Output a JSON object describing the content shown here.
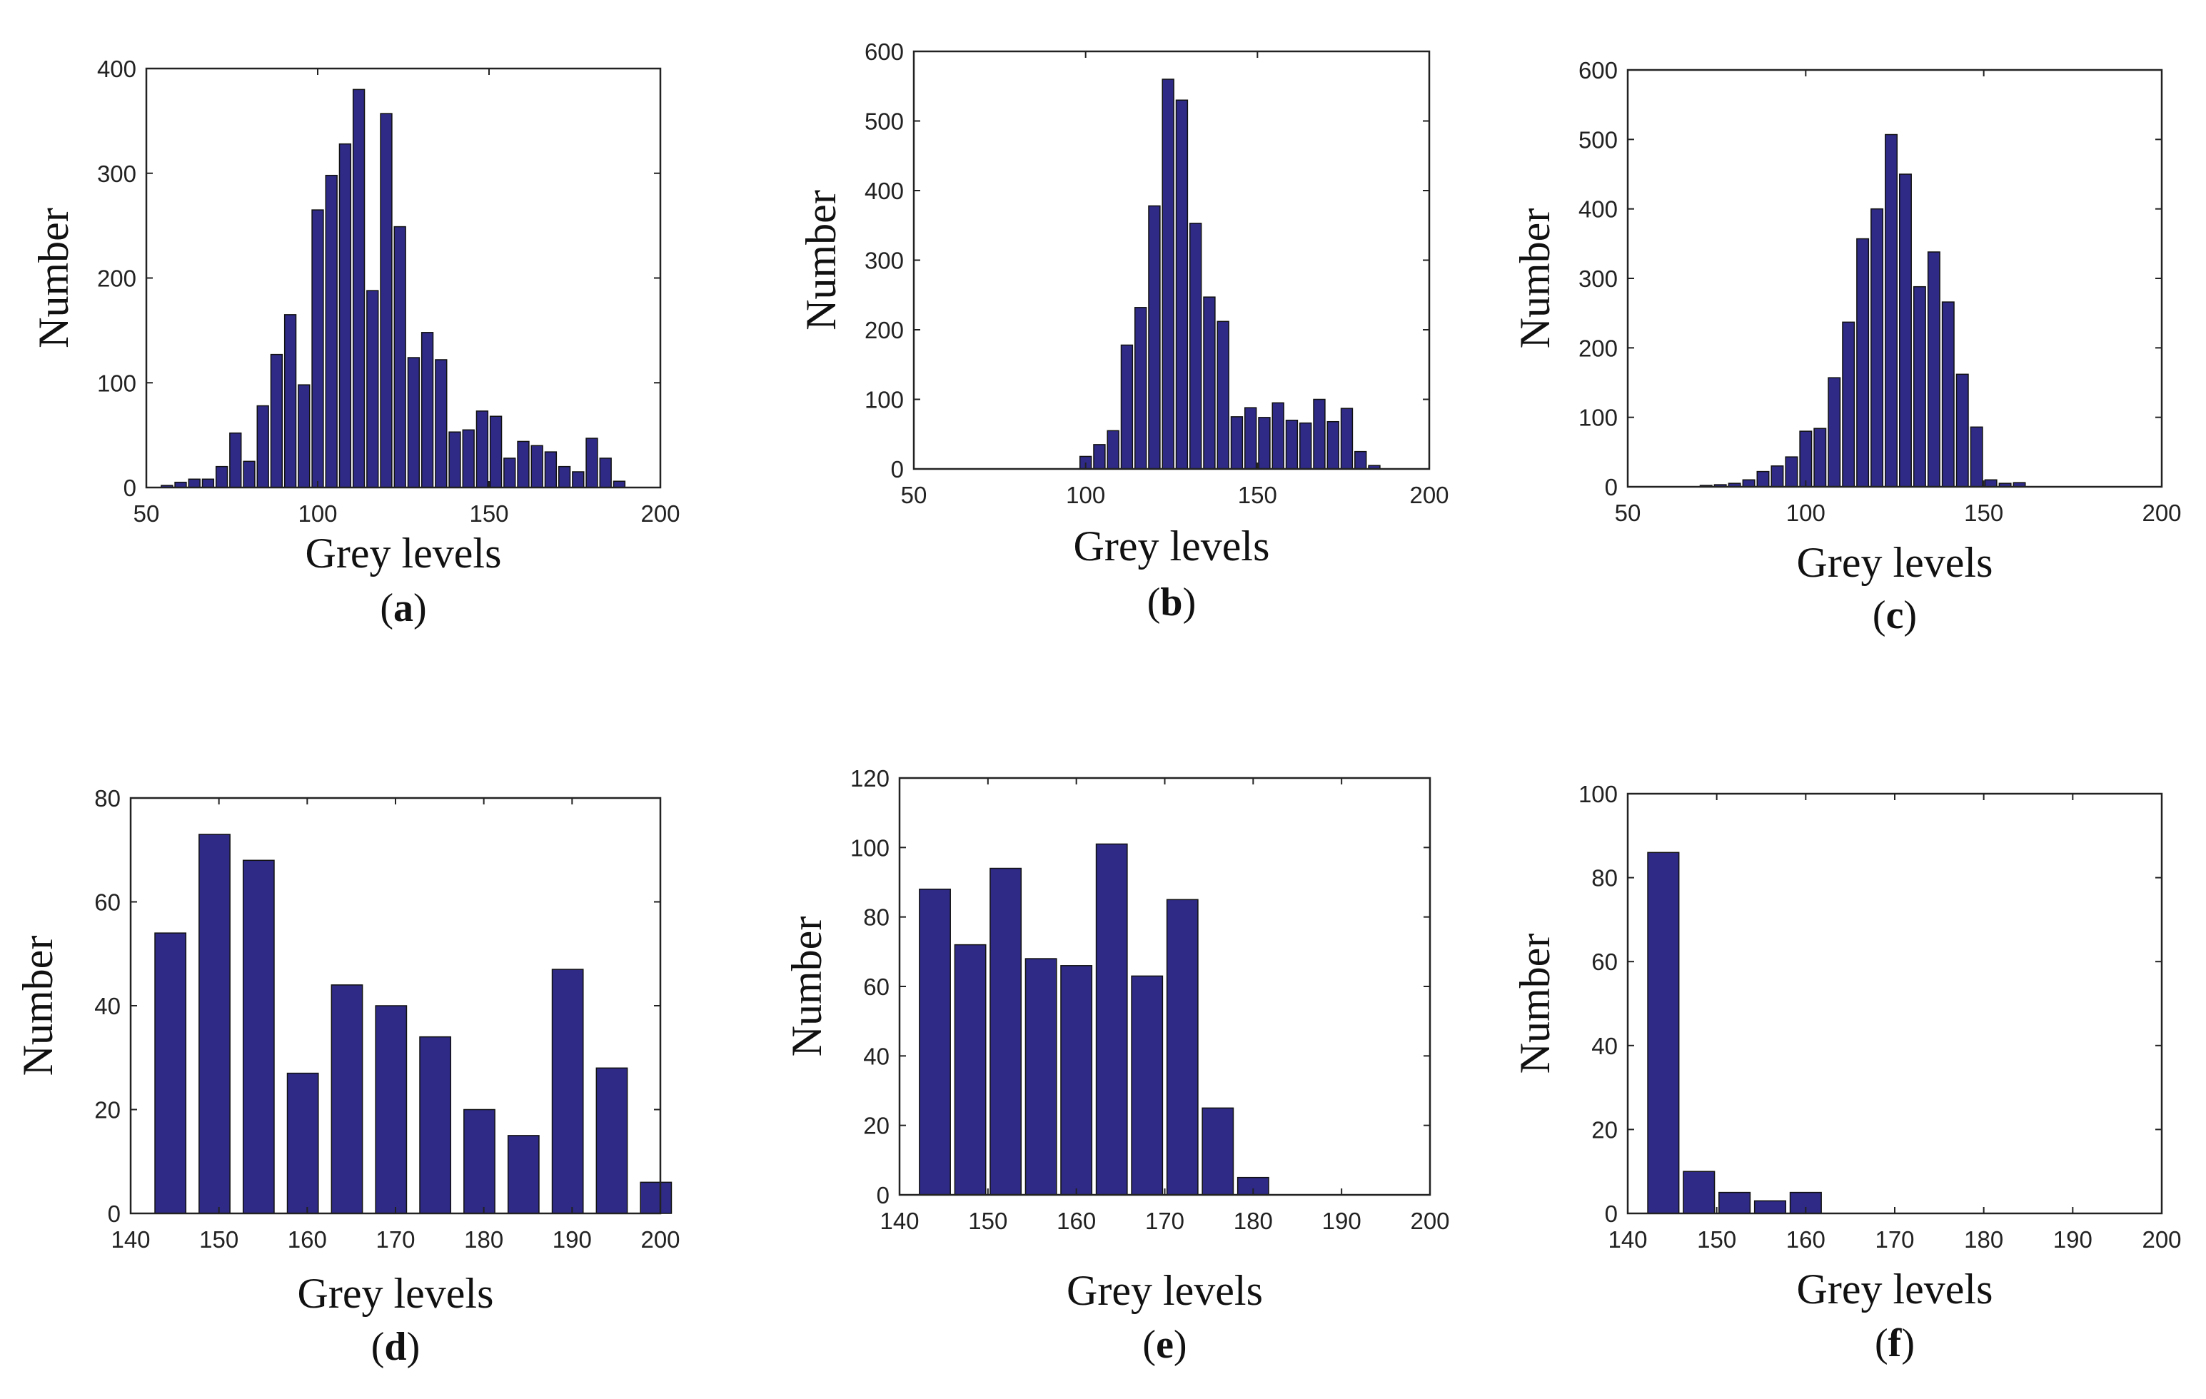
{
  "chart_data": [
    {
      "type": "bar",
      "panel_label": "a",
      "xlabel": "Grey levels",
      "ylabel": "Number",
      "xlim": [
        50,
        200
      ],
      "ylim": [
        0,
        400
      ],
      "xticks": [
        50,
        100,
        150,
        200
      ],
      "yticks": [
        0,
        100,
        200,
        300,
        400
      ],
      "bar_width": 3.3,
      "bar_color": "#2e2a86",
      "x": [
        56,
        60,
        64,
        68,
        72,
        76,
        80,
        84,
        88,
        92,
        96,
        100,
        104,
        108,
        112,
        116,
        120,
        124,
        128,
        132,
        136,
        140,
        144,
        148,
        152,
        156,
        160,
        164,
        168,
        172,
        176,
        180,
        184,
        188
      ],
      "values": [
        2,
        5,
        8,
        8,
        20,
        52,
        25,
        78,
        127,
        165,
        98,
        265,
        298,
        328,
        380,
        188,
        357,
        249,
        124,
        148,
        122,
        53,
        55,
        73,
        68,
        28,
        44,
        40,
        34,
        20,
        15,
        47,
        28,
        6
      ]
    },
    {
      "type": "bar",
      "panel_label": "b",
      "xlabel": "Grey levels",
      "ylabel": "Number",
      "xlim": [
        50,
        200
      ],
      "ylim": [
        0,
        600
      ],
      "xticks": [
        50,
        100,
        150,
        200
      ],
      "yticks": [
        0,
        100,
        200,
        300,
        400,
        500,
        600
      ],
      "bar_width": 3.3,
      "bar_color": "#2e2a86",
      "x": [
        80,
        84,
        88,
        92,
        96,
        100,
        104,
        108,
        112,
        116,
        120,
        124,
        128,
        132,
        136,
        140,
        144,
        148,
        152,
        156,
        160,
        164,
        168,
        172,
        176,
        180,
        184,
        188,
        192,
        196
      ],
      "values": [
        0,
        0,
        0,
        0,
        0,
        18,
        35,
        55,
        178,
        232,
        378,
        560,
        530,
        353,
        247,
        212,
        75,
        88,
        74,
        95,
        70,
        66,
        100,
        68,
        87,
        25,
        5,
        0,
        0,
        0
      ]
    },
    {
      "type": "bar",
      "panel_label": "c",
      "xlabel": "Grey levels",
      "ylabel": "Number",
      "xlim": [
        50,
        200
      ],
      "ylim": [
        0,
        600
      ],
      "xticks": [
        50,
        100,
        150,
        200
      ],
      "yticks": [
        0,
        100,
        200,
        300,
        400,
        500,
        600
      ],
      "bar_width": 3.3,
      "bar_color": "#2e2a86",
      "x": [
        72,
        76,
        80,
        84,
        88,
        92,
        96,
        100,
        104,
        108,
        112,
        116,
        120,
        124,
        128,
        132,
        136,
        140,
        144,
        148,
        152,
        156,
        160
      ],
      "values": [
        2,
        3,
        5,
        10,
        22,
        30,
        43,
        80,
        84,
        157,
        237,
        357,
        400,
        507,
        450,
        288,
        338,
        266,
        162,
        86,
        10,
        5,
        6
      ]
    },
    {
      "type": "bar",
      "panel_label": "d",
      "xlabel": "Grey levels",
      "ylabel": "Number",
      "xlim": [
        140,
        200
      ],
      "ylim": [
        0,
        80
      ],
      "xticks": [
        140,
        150,
        160,
        170,
        180,
        190,
        200
      ],
      "yticks": [
        0,
        20,
        40,
        60,
        80
      ],
      "bar_width": 3.5,
      "bar_color": "#2e2a86",
      "x": [
        143,
        148,
        153,
        158,
        163,
        168,
        173,
        178,
        183,
        188,
        193,
        198
      ],
      "values": [
        54,
        73,
        68,
        27,
        44,
        40,
        34,
        20,
        15,
        47,
        28,
        6
      ],
      "x_shifted_note": "",
      "x_actual": [
        144.5,
        149.5,
        154.5,
        159.5,
        164.5,
        169.5,
        174.5,
        179.5,
        184.5,
        189.5,
        194.5,
        199.5
      ]
    },
    {
      "type": "bar",
      "panel_label": "e",
      "xlabel": "Grey levels",
      "ylabel": "Number",
      "xlim": [
        140,
        200
      ],
      "ylim": [
        0,
        120
      ],
      "xticks": [
        140,
        150,
        160,
        170,
        180,
        190,
        200
      ],
      "yticks": [
        0,
        20,
        40,
        60,
        80,
        100,
        120
      ],
      "bar_width": 3.5,
      "bar_color": "#2e2a86",
      "x": [
        144,
        148,
        152,
        156,
        160,
        164,
        168,
        172,
        176,
        180,
        184,
        188,
        192,
        196
      ],
      "values": [
        88,
        72,
        94,
        68,
        66,
        101,
        63,
        85,
        25,
        5,
        0,
        0,
        0,
        0
      ]
    },
    {
      "type": "bar",
      "panel_label": "f",
      "xlabel": "Grey levels",
      "ylabel": "Number",
      "xlim": [
        140,
        200
      ],
      "ylim": [
        0,
        100
      ],
      "xticks": [
        140,
        150,
        160,
        170,
        180,
        190,
        200
      ],
      "yticks": [
        0,
        20,
        40,
        60,
        80,
        100
      ],
      "bar_width": 3.5,
      "bar_color": "#2e2a86",
      "x": [
        144,
        148,
        152,
        156,
        160,
        164,
        168,
        172,
        176,
        180,
        184,
        188,
        192,
        196
      ],
      "values": [
        86,
        10,
        5,
        3,
        5,
        0,
        0,
        0,
        0,
        0,
        0,
        0,
        0,
        0
      ]
    }
  ]
}
